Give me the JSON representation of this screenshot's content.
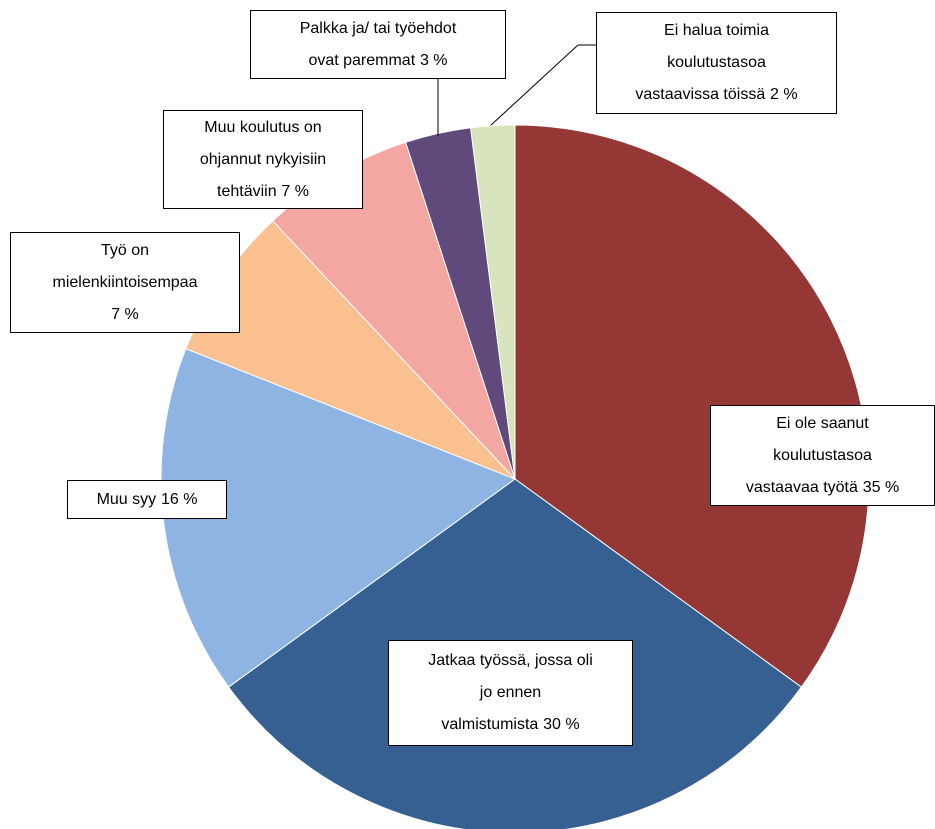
{
  "chart_data": {
    "type": "pie",
    "categories": [
      "Ei ole saanut\nkoulutustasoa\nvastaavaa työtä",
      "Jatkaa työssä, jossa oli\njo ennen\nvalmistumista",
      "Muu syy",
      "Työ on\nmielenkiintoisempaa",
      "Muu koulutus on\nohjannut nykyisiin\ntehtäviin",
      "Palkka ja/ tai työehdot\novat paremmat",
      "Ei halua toimia\nkoulutustasoa\nvastaavissa töissä"
    ],
    "values": [
      35,
      30,
      16,
      7,
      7,
      3,
      2
    ],
    "value_labels": [
      "35 %",
      "30 %",
      "16 %",
      "7 %",
      "7 %",
      "3 %",
      "2 %"
    ],
    "colors": [
      "#953735",
      "#376092",
      "#8eb4e3",
      "#fac090",
      "#f4a7a2",
      "#604a7b",
      "#d7e4bd"
    ]
  }
}
